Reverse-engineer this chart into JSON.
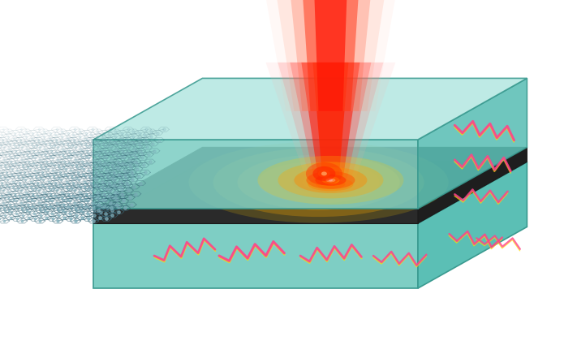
{
  "bg_color": "#ffffff",
  "hbn_top_color": "#7ecec4",
  "hbn_top_face": "#a8e0da",
  "hbn_side_color": "#5bbfb5",
  "hbn_dark_face": "#4aada5",
  "graphene_top": "#1a1a1a",
  "graphene_front": "#2a2a2a",
  "fig_width": 7.11,
  "fig_height": 4.2,
  "dpi": 100
}
